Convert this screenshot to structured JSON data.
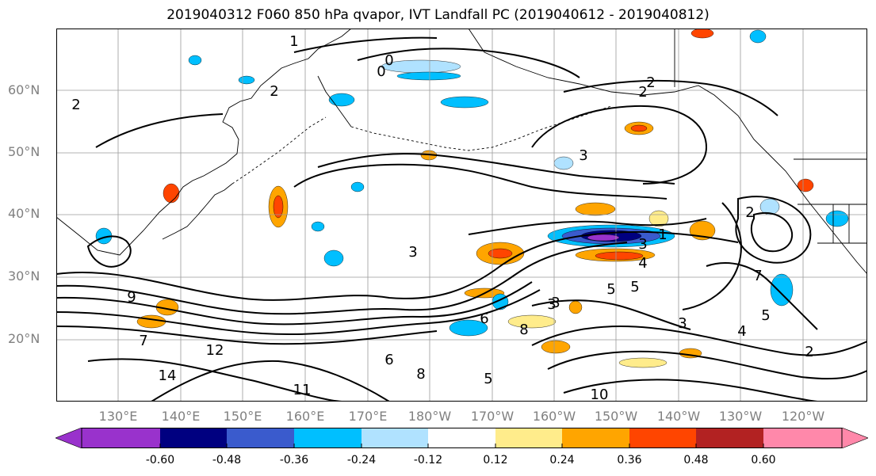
{
  "title": "2019040312 F060 850 hPa qvapor, IVT Landfall PC (2019040612 - 2019040812)",
  "lat_labels": [
    "60°N",
    "50°N",
    "40°N",
    "30°N",
    "20°N"
  ],
  "lon_labels": [
    "130°E",
    "140°E",
    "150°E",
    "160°E",
    "170°E",
    "180°W",
    "170°W",
    "160°W",
    "150°W",
    "140°W",
    "130°W",
    "120°W"
  ],
  "colorbar": {
    "colors": [
      "#9932cc",
      "#000080",
      "#3a5bcd",
      "#00bfff",
      "#b0e2ff",
      "#ffffff",
      "#ffec8b",
      "#ffa500",
      "#ff4500",
      "#b22222",
      "#ff88aa"
    ],
    "ticks": [
      "-0.60",
      "-0.48",
      "-0.36",
      "-0.24",
      "-0.12",
      "0.12",
      "0.24",
      "0.36",
      "0.48",
      "0.60"
    ]
  },
  "contour_labels": [
    "1",
    "0",
    "0",
    "2",
    "2",
    "2",
    "3",
    "2",
    "3",
    "2",
    "1",
    "3",
    "4",
    "5",
    "3",
    "7",
    "5",
    "3",
    "5",
    "4",
    "3",
    "2",
    "9",
    "7",
    "12",
    "14",
    "11",
    "8",
    "6",
    "5",
    "10",
    "6",
    "8"
  ]
}
